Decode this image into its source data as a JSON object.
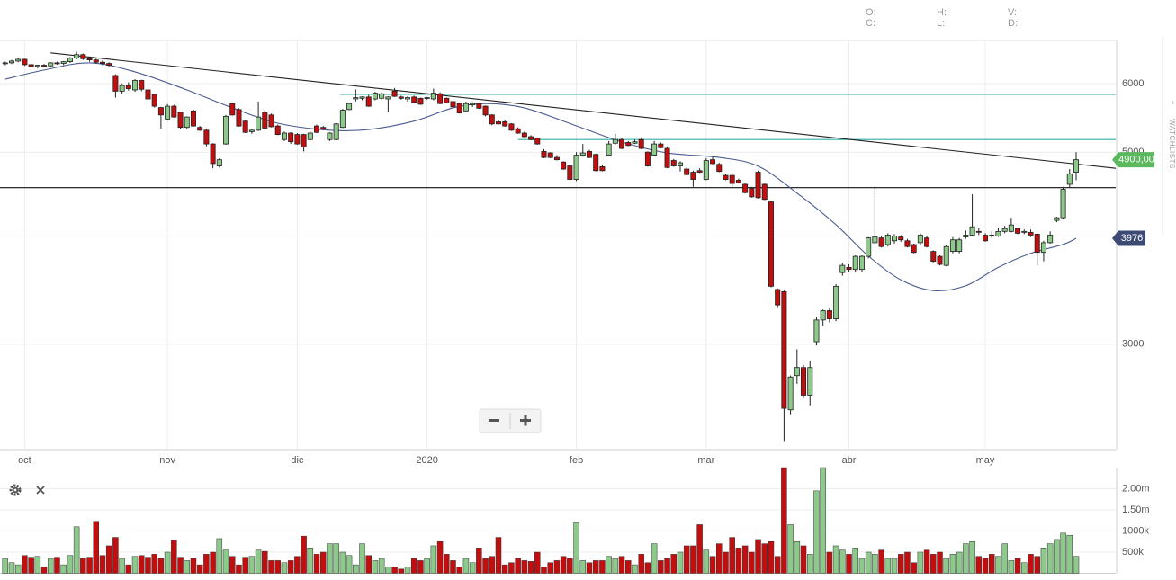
{
  "header": {
    "labels": [
      "O:",
      "H:",
      "V:",
      "C:",
      "L:",
      "D:"
    ]
  },
  "side_tab": "WATCHLISTS",
  "chart_data": [
    {
      "type": "candlestick",
      "categories": [
        null,
        null,
        null,
        "oct",
        null,
        null,
        null,
        null,
        null,
        null,
        null,
        null,
        null,
        null,
        null,
        null,
        null,
        null,
        null,
        null,
        null,
        null,
        null,
        null,
        null,
        "nov",
        null,
        null,
        null,
        null,
        null,
        null,
        null,
        null,
        null,
        null,
        null,
        null,
        null,
        null,
        null,
        null,
        null,
        null,
        null,
        "dic",
        null,
        null,
        null,
        null,
        null,
        null,
        null,
        null,
        null,
        null,
        null,
        null,
        null,
        null,
        null,
        null,
        null,
        null,
        null,
        "2020",
        null,
        null,
        null,
        null,
        null,
        null,
        null,
        null,
        null,
        null,
        null,
        null,
        null,
        null,
        null,
        null,
        null,
        null,
        null,
        null,
        null,
        null,
        "feb",
        null,
        null,
        null,
        null,
        null,
        null,
        null,
        null,
        null,
        null,
        null,
        null,
        null,
        null,
        null,
        null,
        null,
        null,
        null,
        "mar",
        null,
        null,
        null,
        null,
        null,
        null,
        null,
        null,
        null,
        null,
        null,
        null,
        null,
        null,
        null,
        null,
        null,
        null,
        null,
        null,
        null,
        "abr",
        null,
        null,
        null,
        null,
        null,
        null,
        null,
        null,
        null,
        null,
        null,
        null,
        null,
        null,
        null,
        null,
        null,
        null,
        null,
        null,
        "may",
        null,
        null,
        null,
        null,
        null,
        null,
        null,
        null,
        null,
        null,
        null,
        null,
        null,
        null
      ],
      "open": [
        6330,
        6340,
        6370,
        6400,
        6310,
        6280,
        6300,
        6290,
        6340,
        6330,
        6360,
        6420,
        6480,
        6410,
        6390,
        6350,
        6330,
        6130,
        5880,
        5970,
        5900,
        6050,
        5900,
        5830,
        5630,
        5460,
        5650,
        5560,
        5340,
        5580,
        5340,
        5300,
        5110,
        4820,
        5110,
        5690,
        5600,
        5430,
        5280,
        5300,
        5560,
        5520,
        5360,
        5170,
        5260,
        5240,
        5240,
        5170,
        5360,
        5340,
        5170,
        5170,
        5340,
        5600,
        5760,
        5770,
        5790,
        5760,
        5770,
        5760,
        5880,
        5790,
        5760,
        5790,
        5770,
        5770,
        5760,
        5840,
        5770,
        5720,
        5690,
        5580,
        5670,
        5690,
        5650,
        5520,
        5420,
        5420,
        5390,
        5320,
        5260,
        5210,
        5190,
        5010,
        4990,
        4930,
        4870,
        4820,
        4650,
        4960,
        5010,
        4970,
        4810,
        4960,
        5120,
        5170,
        5130,
        5120,
        5170,
        5000,
        4960,
        5110,
        5050,
        4890,
        4820,
        4780,
        4740,
        4760,
        4650,
        4900,
        4840,
        4700,
        4700,
        4640,
        4590,
        4540,
        4740,
        4590,
        4380,
        3470,
        3450,
        2520,
        2760,
        2820,
        2620,
        3020,
        3200,
        3280,
        3210,
        3630,
        3680,
        3660,
        3660,
        3790,
        3930,
        3980,
        3910,
        3950,
        3990,
        3950,
        3910,
        3930,
        3980,
        3840,
        3790,
        3700,
        3840,
        3840,
        3990,
        4010,
        4050,
        4010,
        4010,
        4000,
        4050,
        4050,
        4080,
        4040,
        4040,
        4020,
        3830,
        3930,
        4170,
        4200,
        4590,
        4740
      ],
      "high": [
        6360,
        6390,
        6430,
        6410,
        6330,
        6310,
        6320,
        6350,
        6360,
        6370,
        6440,
        6530,
        6500,
        6450,
        6410,
        6380,
        6350,
        6150,
        6000,
        6020,
        6070,
        6060,
        5920,
        5840,
        5640,
        5680,
        5670,
        5570,
        5500,
        5600,
        5360,
        5320,
        5120,
        4920,
        5520,
        5700,
        5620,
        5450,
        5310,
        5720,
        5590,
        5540,
        5380,
        5280,
        5270,
        5260,
        5250,
        5280,
        5380,
        5360,
        5270,
        5400,
        5610,
        5700,
        5910,
        5800,
        5820,
        5870,
        5860,
        5800,
        5930,
        5810,
        5800,
        5810,
        5780,
        5790,
        5920,
        5860,
        5780,
        5740,
        5700,
        5720,
        5710,
        5700,
        5660,
        5530,
        5440,
        5440,
        5400,
        5340,
        5280,
        5230,
        5200,
        5040,
        5000,
        4960,
        4880,
        4830,
        5000,
        5110,
        5030,
        4980,
        4830,
        5150,
        5250,
        5190,
        5150,
        5170,
        5190,
        5010,
        5150,
        5130,
        5070,
        4910,
        4880,
        4800,
        4760,
        4790,
        4920,
        4940,
        4860,
        4720,
        4710,
        4660,
        4600,
        4560,
        4760,
        4600,
        4390,
        3480,
        3460,
        2760,
        2960,
        2840,
        2870,
        3230,
        3290,
        3300,
        3520,
        3720,
        3710,
        3800,
        3800,
        3990,
        4560,
        4000,
        4030,
        4020,
        4010,
        3970,
        3920,
        4030,
        4000,
        3850,
        3800,
        3910,
        3990,
        3980,
        4060,
        4470,
        4090,
        4030,
        4050,
        4090,
        4110,
        4200,
        4090,
        4070,
        4070,
        4030,
        3950,
        4050,
        4210,
        4560,
        4780,
        5000
      ],
      "low": [
        6300,
        6320,
        6350,
        6290,
        6260,
        6250,
        6270,
        6280,
        6310,
        6300,
        6340,
        6400,
        6390,
        6360,
        6330,
        6300,
        6280,
        5780,
        5840,
        5890,
        5870,
        5880,
        5740,
        5630,
        5320,
        5440,
        5480,
        5320,
        5320,
        5350,
        5290,
        5080,
        4790,
        4800,
        5100,
        5510,
        5350,
        5260,
        5250,
        5290,
        5320,
        5340,
        5230,
        5150,
        5110,
        5100,
        5010,
        5160,
        5260,
        5300,
        5150,
        5160,
        5330,
        5590,
        5720,
        5740,
        5640,
        5740,
        5750,
        5560,
        5790,
        5750,
        5720,
        5700,
        5670,
        5750,
        5740,
        5680,
        5690,
        5630,
        5540,
        5560,
        5640,
        5610,
        5500,
        5370,
        5380,
        5350,
        5290,
        5250,
        5200,
        5160,
        5100,
        4920,
        4920,
        4890,
        4770,
        4640,
        4630,
        4940,
        4920,
        4750,
        4750,
        4950,
        5100,
        5040,
        5080,
        5110,
        5040,
        4810,
        4950,
        5050,
        4790,
        4810,
        4750,
        4700,
        4560,
        4730,
        4640,
        4840,
        4740,
        4640,
        4560,
        4600,
        4480,
        4430,
        4420,
        4400,
        3490,
        3310,
        2320,
        2490,
        2700,
        2600,
        2550,
        2990,
        3150,
        3180,
        3190,
        3600,
        3640,
        3640,
        3640,
        3770,
        3900,
        3880,
        3890,
        3920,
        3940,
        3880,
        3820,
        3910,
        3880,
        3730,
        3700,
        3690,
        3820,
        3820,
        3970,
        4000,
        4010,
        3940,
        3980,
        3990,
        4030,
        4040,
        4020,
        4020,
        3990,
        3700,
        3740,
        3920,
        4150,
        4180,
        4550,
        4640
      ],
      "close": [
        6340,
        6370,
        6400,
        6310,
        6280,
        6300,
        6290,
        6340,
        6330,
        6360,
        6420,
        6480,
        6410,
        6390,
        6350,
        6330,
        6300,
        5880,
        5970,
        5920,
        6050,
        5910,
        5760,
        5650,
        5520,
        5650,
        5490,
        5340,
        5490,
        5360,
        5300,
        5110,
        4850,
        4900,
        5500,
        5520,
        5360,
        5270,
        5300,
        5490,
        5330,
        5350,
        5240,
        5260,
        5140,
        5110,
        5070,
        5260,
        5270,
        5320,
        5260,
        5390,
        5590,
        5690,
        5780,
        5790,
        5650,
        5850,
        5840,
        5790,
        5800,
        5770,
        5780,
        5710,
        5680,
        5780,
        5850,
        5690,
        5700,
        5640,
        5550,
        5690,
        5690,
        5620,
        5520,
        5390,
        5390,
        5360,
        5300,
        5260,
        5210,
        5170,
        5110,
        4930,
        4930,
        4900,
        4780,
        4650,
        4960,
        4990,
        4930,
        4760,
        4760,
        5110,
        5170,
        5050,
        5090,
        5140,
        5050,
        4820,
        5110,
        5060,
        4800,
        4820,
        4860,
        4710,
        4650,
        4740,
        4890,
        4850,
        4750,
        4650,
        4600,
        4610,
        4490,
        4440,
        4430,
        4410,
        3500,
        3330,
        2530,
        2750,
        2820,
        2620,
        2820,
        3200,
        3280,
        3210,
        3500,
        3700,
        3660,
        3790,
        3790,
        3980,
        3990,
        3890,
        4010,
        4000,
        3960,
        3890,
        3830,
        4010,
        3890,
        3740,
        3710,
        3890,
        3960,
        3960,
        4010,
        4100,
        4040,
        3950,
        4000,
        4050,
        4080,
        4120,
        4030,
        4050,
        4010,
        3830,
        3930,
        4010,
        4200,
        4530,
        4720,
        4900
      ],
      "last_close_label": "4900,00",
      "up_color": "#8cc98a",
      "down_color": "#c20e0e",
      "label_color": "#5cb85c",
      "xlim": [
        -0.8,
        171.1
      ],
      "ylim": [
        2267,
        6729
      ],
      "log_scale": true,
      "grid": true,
      "yticks": [
        3000,
        4000,
        5000,
        6000
      ],
      "moving_average": {
        "color": "#4b5b8f",
        "label_color": "#3d4a74",
        "x": [
          0,
          6,
          13,
          20,
          28,
          35,
          42,
          50,
          56,
          63,
          69,
          74,
          80,
          88,
          95,
          102,
          110,
          116,
          122,
          128,
          133,
          138,
          143,
          148,
          153,
          158,
          163,
          165
        ],
        "values": [
          6070,
          6220,
          6340,
          6190,
          5900,
          5625,
          5400,
          5300,
          5310,
          5430,
          5625,
          5690,
          5625,
          5362,
          5137,
          4990,
          4930,
          4817,
          4484,
          4123,
          3793,
          3560,
          3460,
          3505,
          3680,
          3820,
          3912,
          3976
        ]
      },
      "trendline": {
        "color": "#222222",
        "x": [
          7,
          171.1
        ],
        "values": [
          6510,
          4790
        ]
      },
      "hlines": [
        {
          "value": 5830,
          "x_start": 51.6,
          "color": "#2fb0a6"
        },
        {
          "value": 5170,
          "x_start": 79,
          "color": "#2fb0a6"
        },
        {
          "value": 4550,
          "x_start": -0.8,
          "color": "#111111"
        }
      ]
    },
    {
      "type": "bar",
      "values": [
        350000,
        250000,
        200000,
        420000,
        380000,
        400000,
        150000,
        350000,
        380000,
        200000,
        420000,
        1100000,
        350000,
        380000,
        1230000,
        420000,
        650000,
        850000,
        350000,
        200000,
        400000,
        420000,
        380000,
        450000,
        350000,
        500000,
        780000,
        380000,
        300000,
        350000,
        200000,
        450000,
        500000,
        820000,
        550000,
        400000,
        200000,
        380000,
        400000,
        550000,
        520000,
        300000,
        300000,
        250000,
        300000,
        400000,
        880000,
        600000,
        450000,
        500000,
        700000,
        700000,
        500000,
        420000,
        200000,
        700000,
        420000,
        300000,
        350000,
        150000,
        150000,
        100000,
        150000,
        350000,
        300000,
        350000,
        650000,
        750000,
        450000,
        300000,
        150000,
        350000,
        250000,
        600000,
        350000,
        400000,
        850000,
        200000,
        250000,
        350000,
        300000,
        280000,
        500000,
        150000,
        250000,
        300000,
        400000,
        350000,
        1200000,
        300000,
        250000,
        300000,
        300000,
        400000,
        350000,
        400000,
        300000,
        200000,
        450000,
        250000,
        700000,
        300000,
        350000,
        450000,
        500000,
        650000,
        650000,
        1150000,
        550000,
        400000,
        700000,
        500000,
        850000,
        600000,
        650000,
        500000,
        800000,
        700000,
        750000,
        400000,
        2500000,
        1150000,
        750000,
        650000,
        450000,
        1950000,
        2500000,
        500000,
        650000,
        550000,
        450000,
        600000,
        350000,
        500000,
        450000,
        550000,
        350000,
        350000,
        450000,
        500000,
        250000,
        500000,
        550000,
        450000,
        500000,
        350000,
        450000,
        500000,
        700000,
        750000,
        400000,
        350000,
        450000,
        400000,
        700000,
        300000,
        350000,
        250000,
        450000,
        400000,
        600000,
        700000,
        800000,
        950000,
        900000,
        400000
      ],
      "up_color": "#8cc98a",
      "down_color": "#c20e0e",
      "xlim": [
        -0.8,
        171.1
      ],
      "ylim": [
        0,
        2500000
      ],
      "grid": true,
      "yticks": [
        {
          "value": 500000,
          "label": "500k"
        },
        {
          "value": 1000000,
          "label": "1000k"
        },
        {
          "value": 1500000,
          "label": "1.50m"
        },
        {
          "value": 2000000,
          "label": "2.00m"
        }
      ]
    }
  ]
}
